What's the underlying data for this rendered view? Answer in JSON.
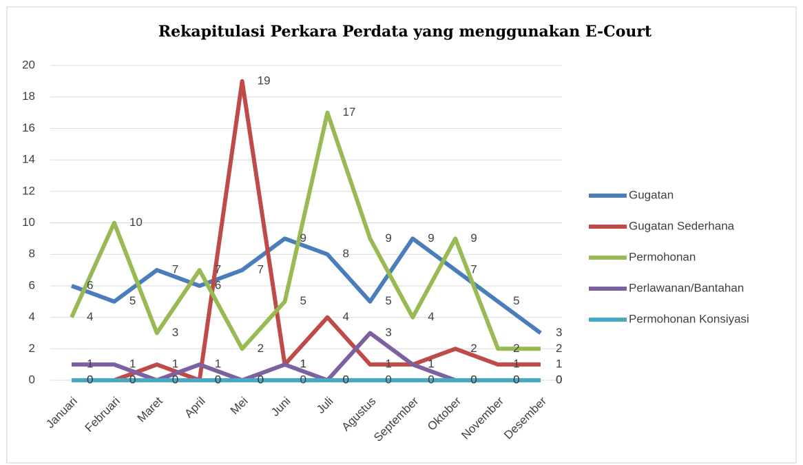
{
  "chart_data": {
    "type": "line",
    "title": "Rekapitulasi Perkara Perdata yang menggunakan E-Court",
    "categories": [
      "Januari",
      "Februari",
      "Maret",
      "April",
      "Mei",
      "Juni",
      "Juli",
      "Agustus",
      "September",
      "Oktober",
      "November",
      "Desember"
    ],
    "series": [
      {
        "name": "Gugatan",
        "color": "#4a7ebb",
        "values": [
          6,
          5,
          7,
          6,
          7,
          9,
          8,
          5,
          9,
          7,
          5,
          3
        ]
      },
      {
        "name": "Gugatan Sederhana",
        "color": "#be4b48",
        "values": [
          0,
          0,
          1,
          0,
          19,
          1,
          4,
          1,
          1,
          2,
          1,
          1
        ]
      },
      {
        "name": "Permohonan",
        "color": "#98b954",
        "values": [
          4,
          10,
          3,
          7,
          2,
          5,
          17,
          9,
          4,
          9,
          2,
          2
        ]
      },
      {
        "name": "Perlawanan/Bantahan",
        "color": "#7d60a0",
        "values": [
          1,
          1,
          0,
          1,
          0,
          1,
          0,
          3,
          1,
          0,
          0,
          0
        ]
      },
      {
        "name": "Permohonan Konsiyasi",
        "color": "#46aac5",
        "values": [
          0,
          0,
          0,
          0,
          0,
          0,
          0,
          0,
          0,
          0,
          0,
          0
        ]
      }
    ],
    "ylim": [
      0,
      20
    ],
    "yticks": [
      0,
      2,
      4,
      6,
      8,
      10,
      12,
      14,
      16,
      18,
      20
    ],
    "grid": true,
    "legend": "right"
  }
}
